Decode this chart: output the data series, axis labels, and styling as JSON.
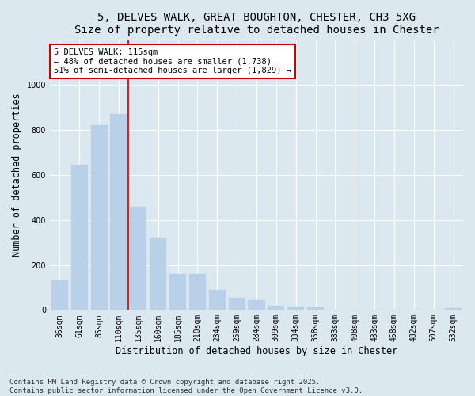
{
  "title": "5, DELVES WALK, GREAT BOUGHTON, CHESTER, CH3 5XG",
  "subtitle": "Size of property relative to detached houses in Chester",
  "xlabel": "Distribution of detached houses by size in Chester",
  "ylabel": "Number of detached properties",
  "categories": [
    "36sqm",
    "61sqm",
    "85sqm",
    "110sqm",
    "135sqm",
    "160sqm",
    "185sqm",
    "210sqm",
    "234sqm",
    "259sqm",
    "284sqm",
    "309sqm",
    "334sqm",
    "358sqm",
    "383sqm",
    "408sqm",
    "433sqm",
    "458sqm",
    "482sqm",
    "507sqm",
    "532sqm"
  ],
  "values": [
    130,
    645,
    820,
    870,
    460,
    320,
    160,
    160,
    90,
    55,
    42,
    18,
    17,
    13,
    0,
    0,
    0,
    0,
    0,
    0,
    8
  ],
  "bar_color": "#b8d0e8",
  "bar_edgecolor": "#b8d0e8",
  "vline_color": "#cc0000",
  "vline_x_index": 3,
  "annotation_text": "5 DELVES WALK: 115sqm\n← 48% of detached houses are smaller (1,738)\n51% of semi-detached houses are larger (1,829) →",
  "annotation_box_color": "#cc0000",
  "background_color": "#dce8f0",
  "plot_bg_color": "#dce8f0",
  "ylim": [
    0,
    1200
  ],
  "yticks": [
    0,
    200,
    400,
    600,
    800,
    1000
  ],
  "footer_text": "Contains HM Land Registry data © Crown copyright and database right 2025.\nContains public sector information licensed under the Open Government Licence v3.0.",
  "title_fontsize": 10,
  "xlabel_fontsize": 8.5,
  "ylabel_fontsize": 8.5,
  "tick_fontsize": 7,
  "annotation_fontsize": 7.5,
  "footer_fontsize": 6.5
}
